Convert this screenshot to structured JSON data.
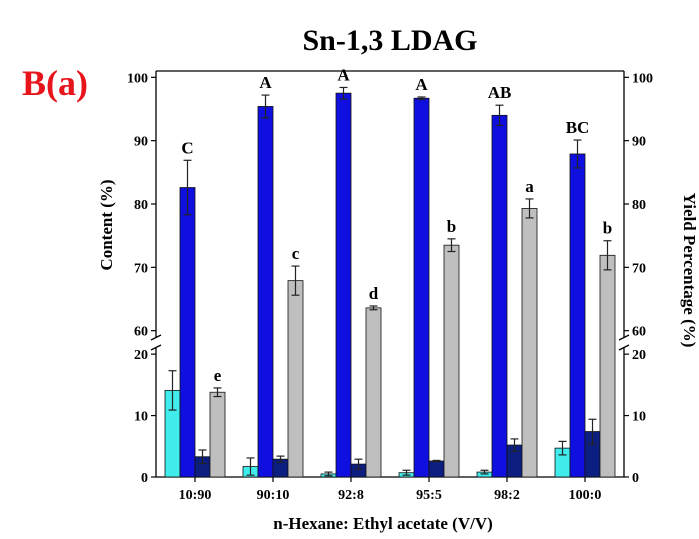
{
  "chart_data": {
    "type": "bar",
    "title": "Sn-1,3 LDAG",
    "panel_label": "B(a)",
    "xlabel": "n-Hexane:  Ethyl acetate (V/V)",
    "ylabel_left": "Content (%)",
    "ylabel_right": "Yield Percentage (%)",
    "categories": [
      "10:90",
      "90:10",
      "92:8",
      "95:5",
      "98:2",
      "100:0"
    ],
    "axis_break": {
      "lower": [
        0,
        21
      ],
      "upper": [
        59,
        101
      ]
    },
    "yticks_lower": [
      "0",
      "10",
      "20"
    ],
    "yticks_upper": [
      "60",
      "70",
      "80",
      "90",
      "100"
    ],
    "colors": {
      "series1": "#40ecec",
      "series2": "#0f0fdf",
      "series3": "#0c1f80",
      "series4": "#bfbfbf",
      "panel_label": "#e8141b"
    },
    "series": [
      {
        "values": [
          14.1,
          1.7,
          0.5,
          0.7,
          0.8,
          4.7
        ],
        "errors": [
          3.2,
          1.4,
          0.3,
          0.4,
          0.3,
          1.1
        ]
      },
      {
        "values": [
          82.6,
          95.4,
          97.5,
          96.7,
          94.0,
          87.9
        ],
        "errors": [
          4.3,
          1.8,
          0.9,
          0.2,
          1.6,
          2.2
        ],
        "labels": [
          "C",
          "A",
          "A",
          "A",
          "AB",
          "BC"
        ]
      },
      {
        "values": [
          3.3,
          2.9,
          2.1,
          2.6,
          5.2,
          7.4
        ],
        "errors": [
          1.1,
          0.5,
          0.8,
          0.1,
          1.0,
          2.0
        ]
      },
      {
        "values": [
          13.8,
          67.9,
          63.6,
          73.5,
          79.3,
          71.9
        ],
        "errors": [
          0.7,
          2.3,
          0.3,
          1.0,
          1.5,
          2.3
        ],
        "labels": [
          "e",
          "c",
          "d",
          "b",
          "a",
          "b"
        ]
      }
    ]
  }
}
